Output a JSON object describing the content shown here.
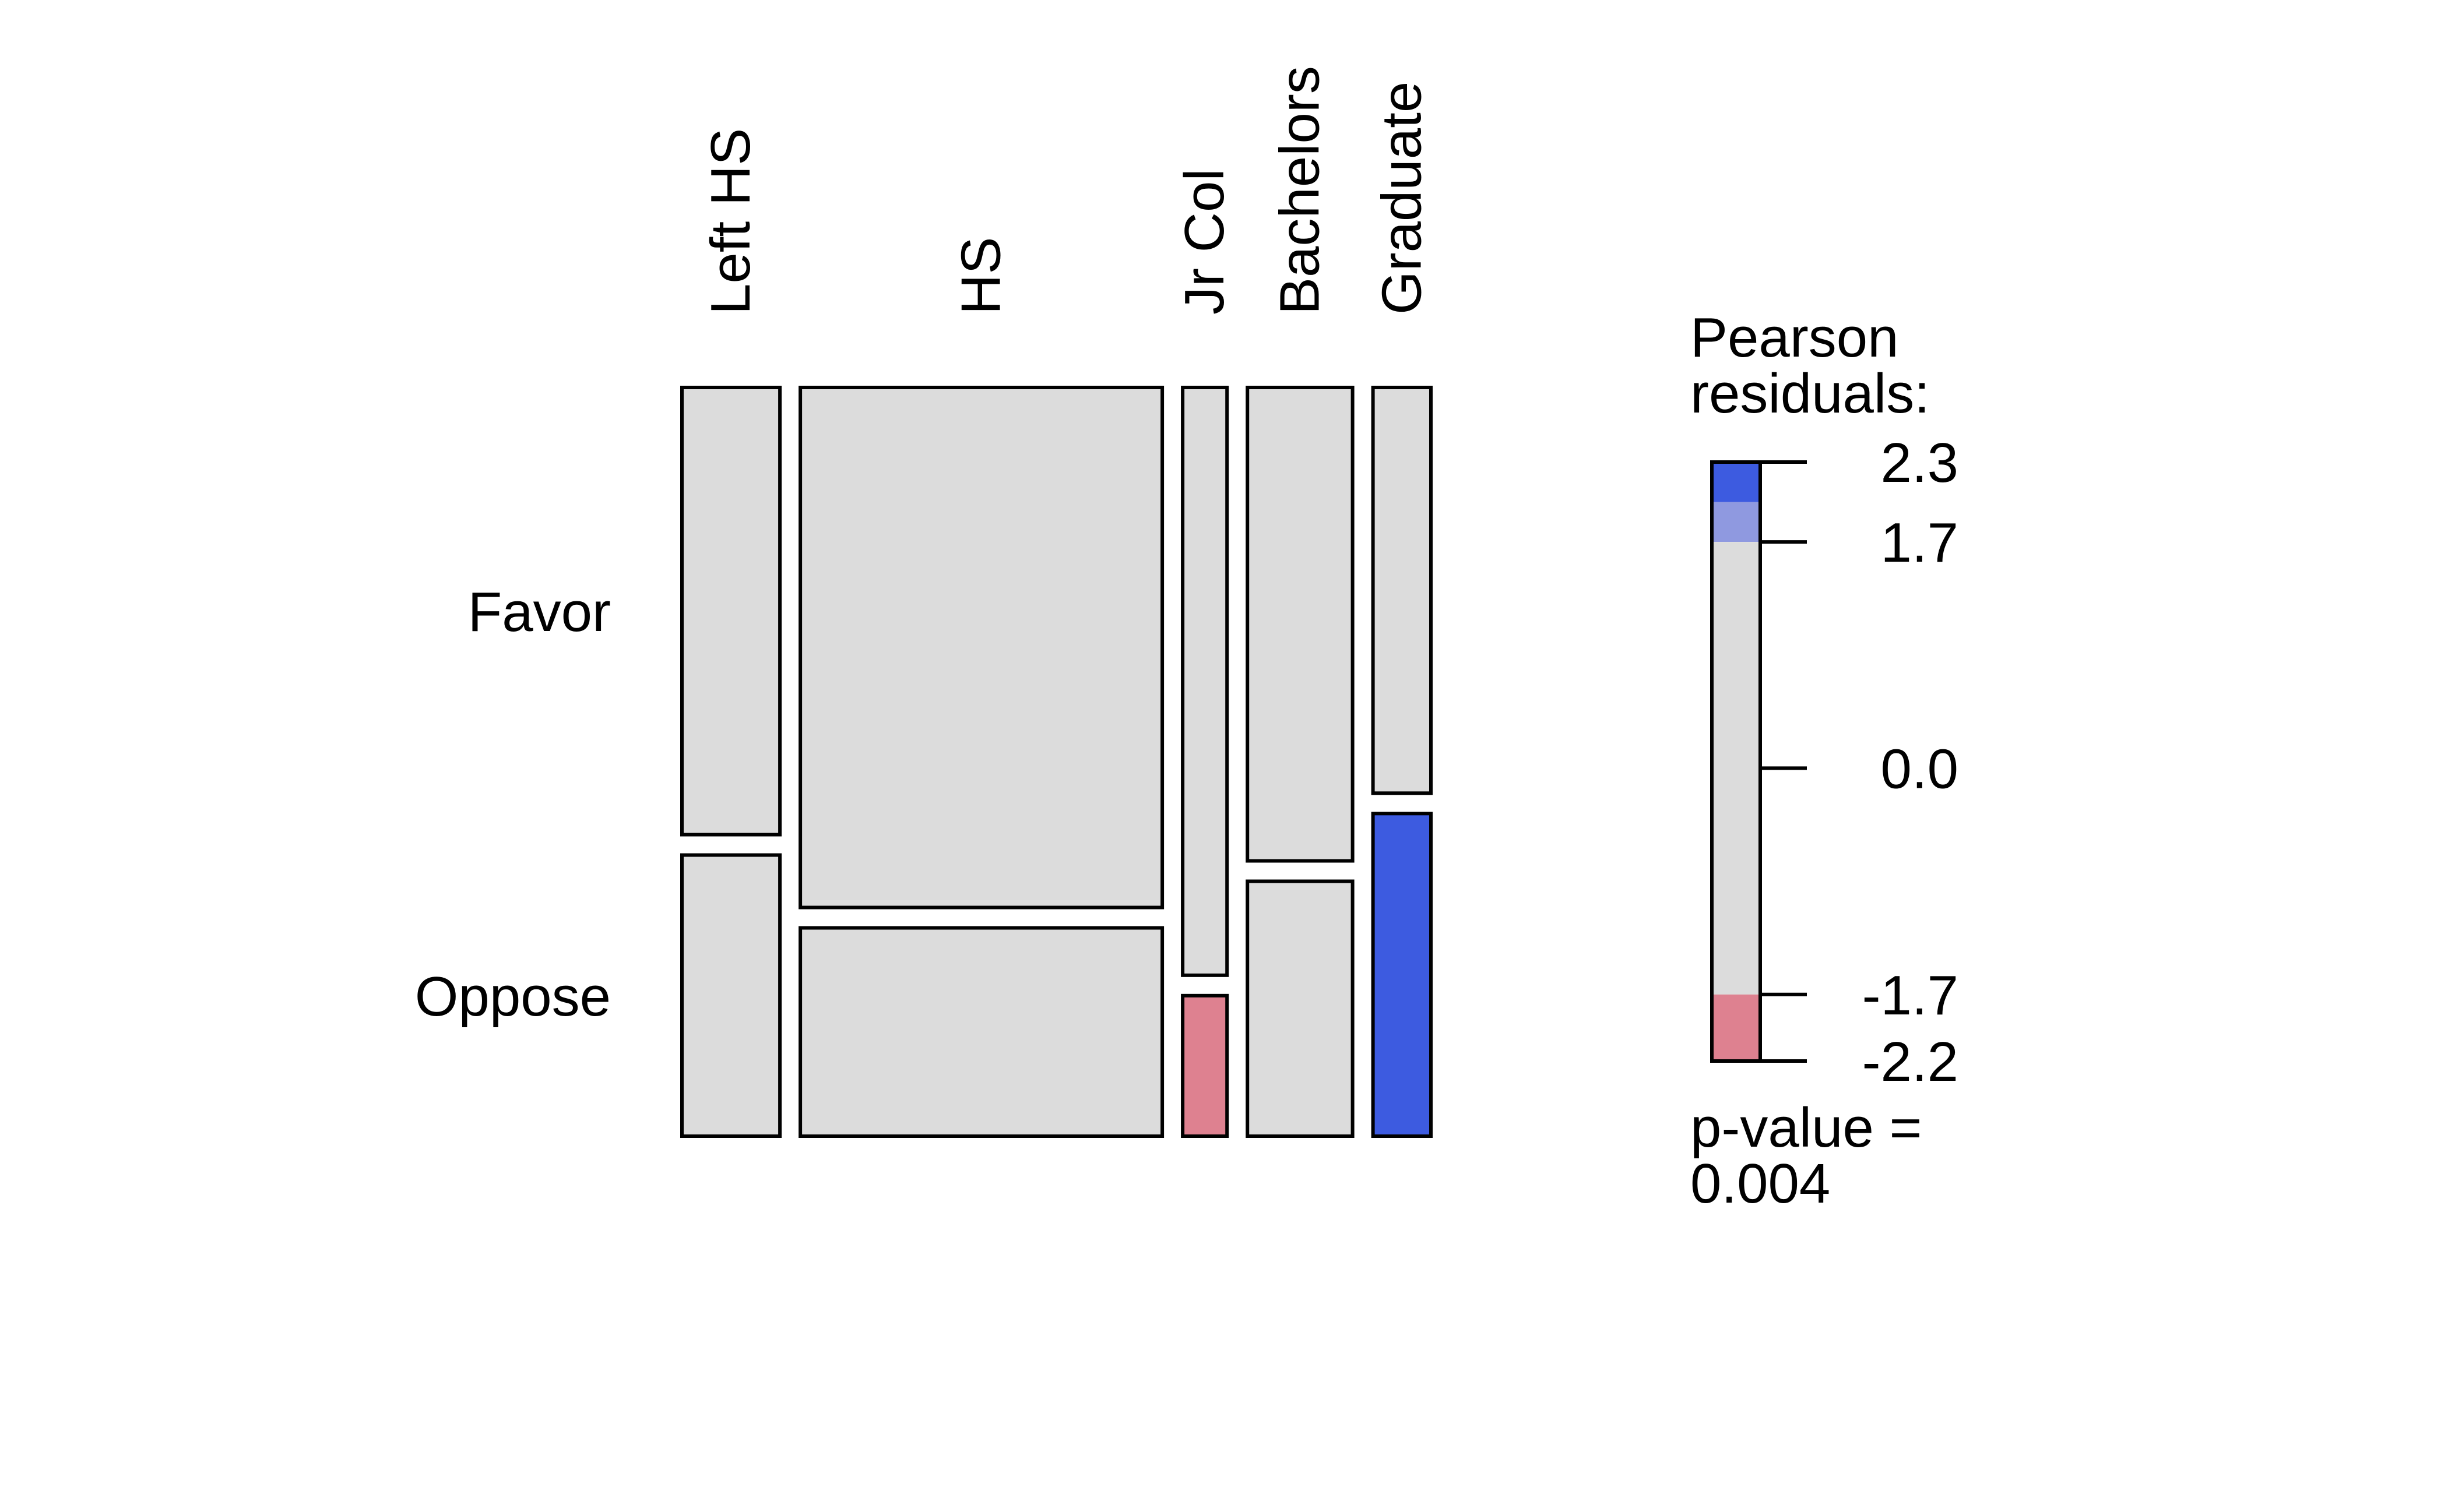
{
  "chart_data": {
    "type": "mosaic",
    "title": "",
    "column_variable_levels": [
      "Left HS",
      "HS",
      "Jr Col",
      "Bachelors",
      "Graduate"
    ],
    "row_variable_levels": [
      "Favor",
      "Oppose"
    ],
    "column_proportions": [
      0.137,
      0.506,
      0.062,
      0.147,
      0.081
    ],
    "favor_share_by_column": [
      0.614,
      0.714,
      0.807,
      0.65,
      0.557
    ],
    "cells": [
      {
        "column": "Left HS",
        "row": "Favor",
        "residual_band": "neutral"
      },
      {
        "column": "Left HS",
        "row": "Oppose",
        "residual_band": "neutral"
      },
      {
        "column": "HS",
        "row": "Favor",
        "residual_band": "neutral"
      },
      {
        "column": "HS",
        "row": "Oppose",
        "residual_band": "neutral"
      },
      {
        "column": "Jr Col",
        "row": "Favor",
        "residual_band": "neutral"
      },
      {
        "column": "Jr Col",
        "row": "Oppose",
        "residual_band": "negative-moderate"
      },
      {
        "column": "Bachelors",
        "row": "Favor",
        "residual_band": "neutral"
      },
      {
        "column": "Bachelors",
        "row": "Oppose",
        "residual_band": "neutral"
      },
      {
        "column": "Graduate",
        "row": "Favor",
        "residual_band": "neutral"
      },
      {
        "column": "Graduate",
        "row": "Oppose",
        "residual_band": "positive-strong"
      }
    ],
    "legend": {
      "title_line1": "Pearson",
      "title_line2": "residuals:",
      "range": [
        -2.2,
        2.3
      ],
      "ticks": [
        2.3,
        1.7,
        0.0,
        -1.7,
        -2.2
      ],
      "tick_labels": [
        "2.3",
        "1.7",
        "0.0",
        "-1.7",
        "-2.2"
      ],
      "bands": [
        {
          "from": 2.0,
          "to": 2.3,
          "color": "#3d5be0"
        },
        {
          "from": 1.7,
          "to": 2.0,
          "color": "#8f99e0"
        },
        {
          "from": -1.7,
          "to": 1.7,
          "color": "#dcdcdc"
        },
        {
          "from": -2.2,
          "to": -1.7,
          "color": "#de8190"
        }
      ],
      "pvalue_line1": "p-value =",
      "pvalue_line2": "0.004"
    },
    "colors": {
      "neutral": "#dcdcdc",
      "positive-moderate": "#8f99e0",
      "positive-strong": "#3d5be0",
      "negative-moderate": "#de8190"
    }
  }
}
